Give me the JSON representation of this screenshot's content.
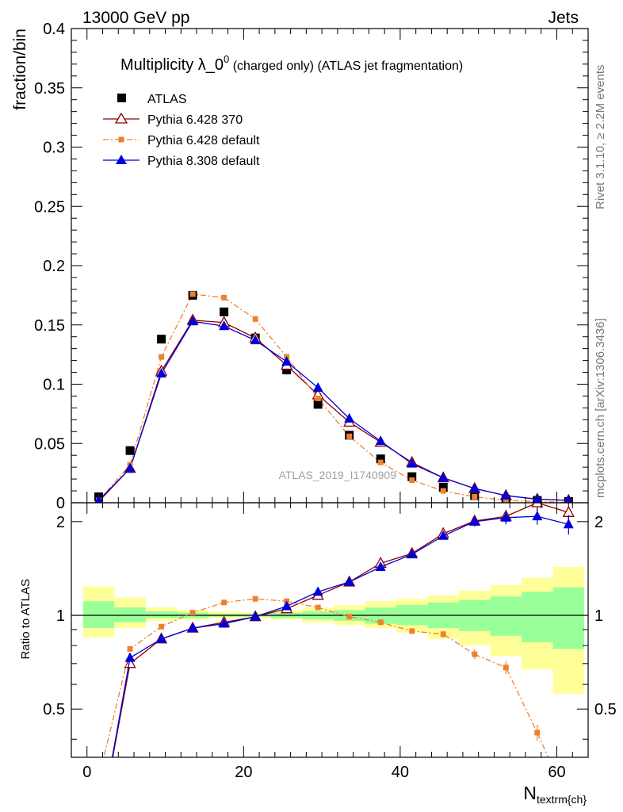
{
  "header": {
    "left": "13000 GeV pp",
    "right": "Jets"
  },
  "side": {
    "rivet": "Rivet 3.1.10, ≥ 2.2M events",
    "mcplots": "mcplots.cern.ch [arXiv:1306.3436]"
  },
  "chart_data": [
    {
      "type": "scatter",
      "title_main": "Multiplicity λ_0",
      "title_sup": "0",
      "title_rest": " (charged only) (ATLAS jet fragmentation)",
      "ylabel": "fraction/bin",
      "xlim": [
        -2,
        64
      ],
      "ylim": [
        0,
        0.4
      ],
      "yticks": [
        "0",
        "0.05",
        "0.1",
        "0.15",
        "0.2",
        "0.25",
        "0.3",
        "0.35",
        "0.4"
      ],
      "watermark": "ATLAS_2019_I1740909",
      "x": [
        1.5,
        5.5,
        9.5,
        13.5,
        17.5,
        21.5,
        25.5,
        29.5,
        33.5,
        37.5,
        41.5,
        45.5,
        49.5,
        53.5,
        57.5,
        61.5
      ],
      "series": [
        {
          "name": "ATLAS",
          "color": "#000000",
          "marker": "square",
          "values": [
            0.005,
            0.044,
            0.138,
            0.175,
            0.161,
            0.139,
            0.112,
            0.083,
            0.057,
            0.037,
            0.022,
            0.013,
            0.006,
            0.003,
            0.002,
            0.001
          ]
        },
        {
          "name": "Pythia 6.428 370",
          "color": "#8b0000",
          "marker": "triangle-open",
          "values": [
            0.001,
            0.029,
            0.111,
            0.154,
            0.152,
            0.139,
            0.116,
            0.091,
            0.068,
            0.051,
            0.034,
            0.021,
            0.012,
            0.006,
            0.003,
            0.002
          ]
        },
        {
          "name": "Pythia 6.428 default",
          "color": "#f08030",
          "marker": "square-small",
          "dash": "dashdot",
          "values": [
            0.002,
            0.032,
            0.123,
            0.176,
            0.173,
            0.155,
            0.123,
            0.088,
            0.056,
            0.034,
            0.019,
            0.01,
            0.005,
            0.002,
            0.001,
            0.0003
          ]
        },
        {
          "name": "Pythia 8.308 default",
          "color": "#0000dd",
          "marker": "triangle",
          "values": [
            0.002,
            0.029,
            0.109,
            0.153,
            0.149,
            0.137,
            0.119,
            0.097,
            0.071,
            0.052,
            0.033,
            0.021,
            0.012,
            0.006,
            0.003,
            0.002
          ]
        }
      ]
    },
    {
      "type": "line",
      "ylabel": "Ratio to ATLAS",
      "xlabel_main": "N",
      "xlabel_sub": "textrm{ch}",
      "xlim": [
        -2,
        64
      ],
      "ylim": [
        0.35,
        2.3
      ],
      "xticks": [
        "0",
        "20",
        "40",
        "60"
      ],
      "yticks": [
        "0.5",
        "1",
        "2"
      ],
      "bands": {
        "edges": [
          -0.5,
          3.5,
          7.5,
          11.5,
          15.5,
          19.5,
          23.5,
          27.5,
          31.5,
          35.5,
          39.5,
          43.5,
          47.5,
          51.5,
          55.5,
          59.5,
          63.5
        ],
        "yellow_lo": [
          0.85,
          0.91,
          0.96,
          0.97,
          0.98,
          0.98,
          0.97,
          0.95,
          0.93,
          0.91,
          0.88,
          0.84,
          0.8,
          0.74,
          0.67,
          0.56
        ],
        "yellow_hi": [
          1.24,
          1.14,
          1.06,
          1.04,
          1.03,
          1.02,
          1.04,
          1.06,
          1.08,
          1.11,
          1.13,
          1.16,
          1.2,
          1.25,
          1.32,
          1.43
        ],
        "green_lo": [
          0.91,
          0.95,
          0.98,
          0.98,
          0.99,
          0.99,
          0.98,
          0.97,
          0.96,
          0.94,
          0.93,
          0.91,
          0.89,
          0.86,
          0.82,
          0.78
        ],
        "green_hi": [
          1.11,
          1.06,
          1.03,
          1.02,
          1.01,
          1.01,
          1.02,
          1.03,
          1.04,
          1.06,
          1.08,
          1.1,
          1.12,
          1.15,
          1.19,
          1.23
        ]
      },
      "series": [
        {
          "name": "Pythia 6.428 370",
          "color": "#8b0000",
          "values": [
            0.2,
            0.7,
            0.84,
            0.91,
            0.95,
            0.99,
            1.05,
            1.16,
            1.28,
            1.47,
            1.58,
            1.83,
            2.01,
            2.08,
            2.3,
            2.14
          ]
        },
        {
          "name": "Pythia 6.428 default",
          "color": "#f08030",
          "values": [
            0.3,
            0.78,
            0.92,
            1.02,
            1.1,
            1.13,
            1.11,
            1.06,
            0.99,
            0.95,
            0.89,
            0.87,
            0.75,
            0.68,
            0.42,
            0.25
          ]
        },
        {
          "name": "Pythia 8.308 default",
          "color": "#0000dd",
          "values": [
            0.2,
            0.73,
            0.84,
            0.91,
            0.94,
            0.99,
            1.07,
            1.19,
            1.28,
            1.43,
            1.57,
            1.8,
            2.0,
            2.06,
            2.08,
            1.96
          ]
        }
      ]
    }
  ]
}
